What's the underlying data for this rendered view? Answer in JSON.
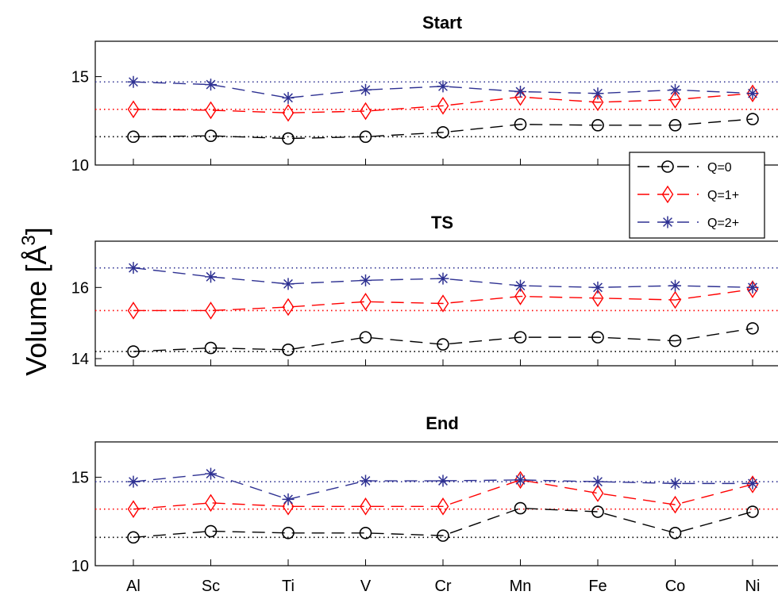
{
  "figure": {
    "ylabel": "Volume [Å",
    "ylabel_superscript": "3",
    "ylabel_suffix": "]"
  },
  "chart_data": [
    {
      "type": "line",
      "title": "Start",
      "categories": [
        "Al",
        "Sc",
        "Ti",
        "V",
        "Cr",
        "Mn",
        "Fe",
        "Co",
        "Ni"
      ],
      "ylim": [
        10,
        17
      ],
      "yticks": [
        10,
        15
      ],
      "show_xtick_labels": false,
      "series": [
        {
          "name": "Q=0",
          "color": "#000000",
          "marker": "circle",
          "values": [
            11.6,
            11.65,
            11.5,
            11.6,
            11.85,
            12.3,
            12.25,
            12.25,
            12.6
          ],
          "reference": 11.6
        },
        {
          "name": "Q=1+",
          "color": "#ff0000",
          "marker": "diamond",
          "values": [
            13.15,
            13.1,
            12.95,
            13.05,
            13.35,
            13.85,
            13.55,
            13.7,
            14.05
          ],
          "reference": 13.15
        },
        {
          "name": "Q=2+",
          "color": "#2e3192",
          "marker": "star",
          "values": [
            14.7,
            14.55,
            13.8,
            14.25,
            14.45,
            14.15,
            14.05,
            14.25,
            14.05
          ],
          "reference": 14.7
        }
      ],
      "legend": {
        "position": "bottom-right",
        "entries": [
          "Q=0",
          "Q=1+",
          "Q=2+"
        ]
      }
    },
    {
      "type": "line",
      "title": "TS",
      "categories": [
        "Al",
        "Sc",
        "Ti",
        "V",
        "Cr",
        "Mn",
        "Fe",
        "Co",
        "Ni"
      ],
      "ylim": [
        13.8,
        17.3
      ],
      "yticks": [
        14,
        16
      ],
      "show_xtick_labels": false,
      "series": [
        {
          "name": "Q=0",
          "color": "#000000",
          "marker": "circle",
          "values": [
            14.2,
            14.3,
            14.25,
            14.6,
            14.4,
            14.6,
            14.6,
            14.5,
            14.85
          ],
          "reference": 14.2
        },
        {
          "name": "Q=1+",
          "color": "#ff0000",
          "marker": "diamond",
          "values": [
            15.35,
            15.35,
            15.45,
            15.6,
            15.55,
            15.75,
            15.7,
            15.65,
            15.95
          ],
          "reference": 15.35
        },
        {
          "name": "Q=2+",
          "color": "#2e3192",
          "marker": "star",
          "values": [
            16.55,
            16.3,
            16.1,
            16.2,
            16.25,
            16.05,
            16.0,
            16.05,
            16.0
          ],
          "reference": 16.55
        }
      ]
    },
    {
      "type": "line",
      "title": "End",
      "categories": [
        "Al",
        "Sc",
        "Ti",
        "V",
        "Cr",
        "Mn",
        "Fe",
        "Co",
        "Ni"
      ],
      "ylim": [
        10,
        17
      ],
      "yticks": [
        10,
        15
      ],
      "show_xtick_labels": true,
      "series": [
        {
          "name": "Q=0",
          "color": "#000000",
          "marker": "circle",
          "values": [
            11.6,
            11.95,
            11.85,
            11.85,
            11.7,
            13.25,
            13.05,
            11.85,
            13.05
          ],
          "reference": 11.6
        },
        {
          "name": "Q=1+",
          "color": "#ff0000",
          "marker": "diamond",
          "values": [
            13.2,
            13.55,
            13.35,
            13.35,
            13.35,
            14.85,
            14.1,
            13.45,
            14.6
          ],
          "reference": 13.2
        },
        {
          "name": "Q=2+",
          "color": "#2e3192",
          "marker": "star",
          "values": [
            14.75,
            15.2,
            13.75,
            14.8,
            14.8,
            14.85,
            14.75,
            14.65,
            14.65
          ],
          "reference": 14.75
        }
      ]
    }
  ]
}
